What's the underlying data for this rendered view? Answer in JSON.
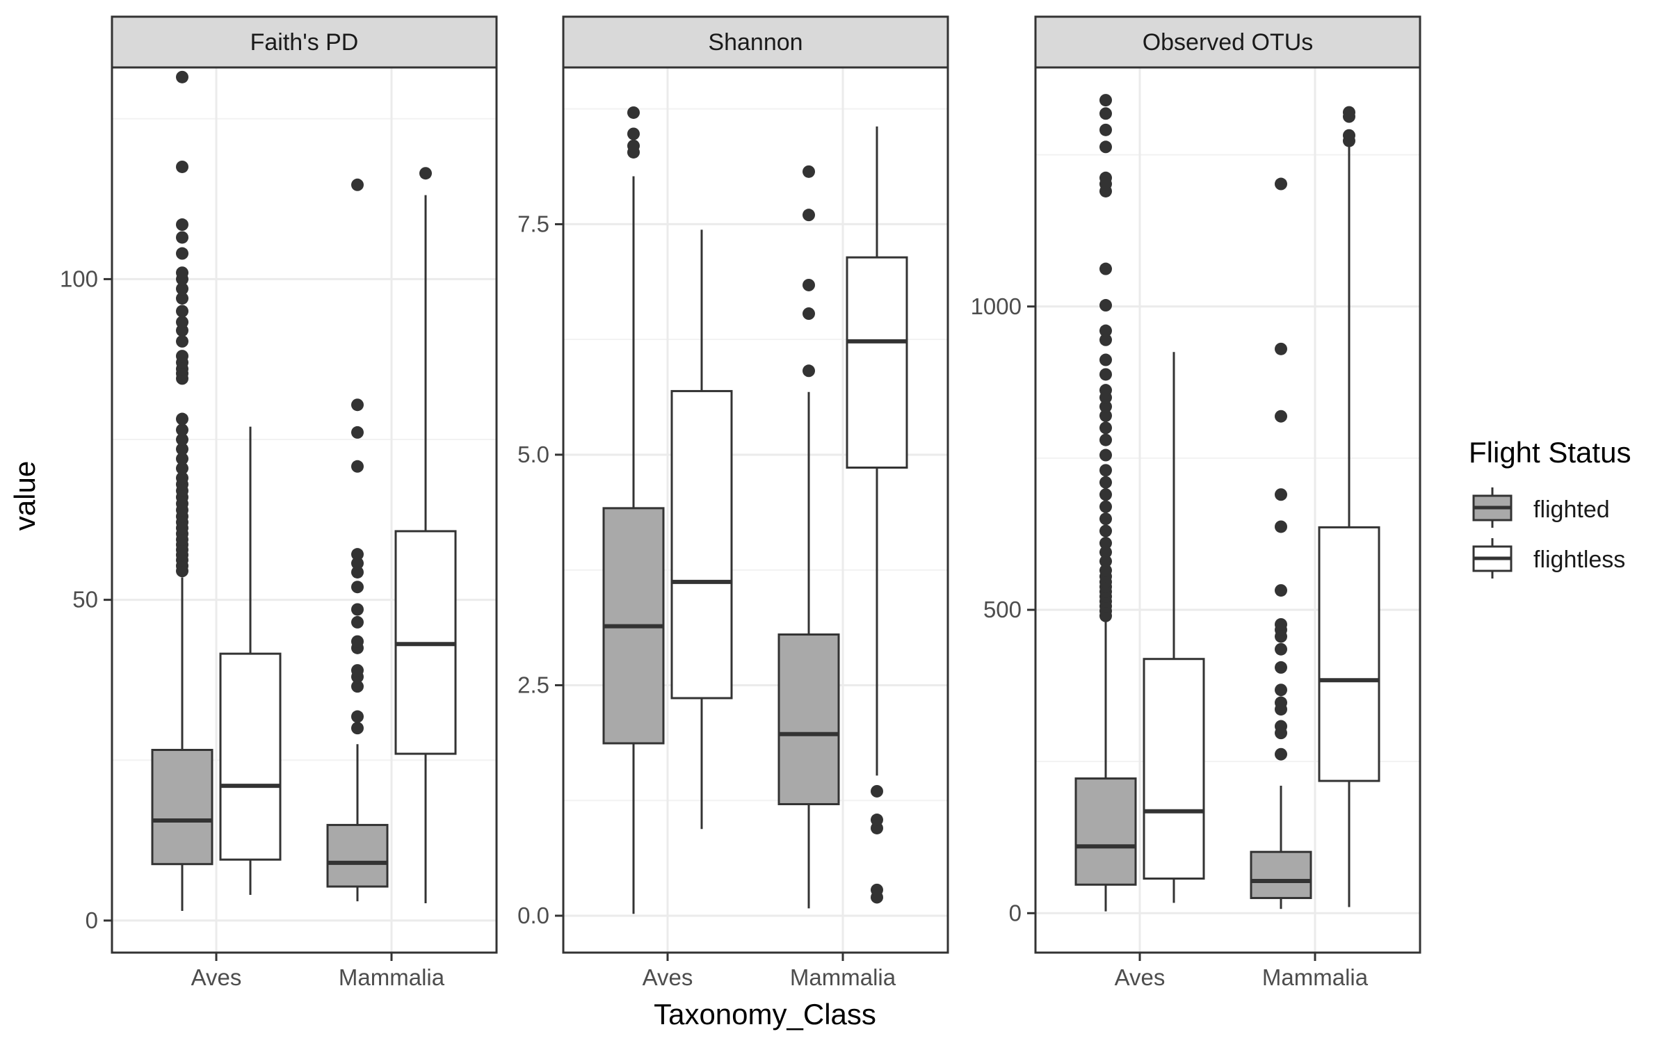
{
  "chart_data": {
    "type": "boxplot",
    "ylabel": "value",
    "xlabel": "Taxonomy_Class",
    "categories": [
      "Aves",
      "Mammalia"
    ],
    "legend": {
      "title": "Flight Status",
      "placement": "right",
      "items": [
        {
          "name": "flighted",
          "color": "#a9a9a9"
        },
        {
          "name": "flightless",
          "color": "#ffffff"
        }
      ]
    },
    "panels": [
      {
        "title": "Faith's PD",
        "ylim": [
          -5,
          133
        ],
        "yticks": [
          0,
          50,
          100
        ],
        "ytick_labels": [
          "0",
          "50",
          "100"
        ],
        "grid": true,
        "boxes": [
          {
            "category": "Aves",
            "group": "flighted",
            "whisker_low": 1.5,
            "q1": 8.8,
            "median": 15.6,
            "q3": 26.6,
            "whisker_high": 53.5,
            "outliers": [
              54.5,
              55.3,
              56.2,
              57.0,
              57.8,
              58.6,
              59.4,
              60.3,
              61.2,
              62.1,
              63.0,
              64.0,
              65.0,
              66.0,
              67.0,
              68.0,
              69.0,
              70.5,
              72.0,
              73.5,
              75.0,
              76.5,
              78.2,
              84.5,
              85.3,
              86.0,
              87.0,
              88.0,
              90.3,
              92.0,
              93.3,
              95.0,
              97.0,
              98.5,
              100.0,
              101.0,
              104.0,
              106.5,
              108.5,
              117.5,
              131.5
            ]
          },
          {
            "category": "Aves",
            "group": "flightless",
            "whisker_low": 4.0,
            "q1": 9.5,
            "median": 21.0,
            "q3": 41.6,
            "whisker_high": 77.0,
            "outliers": []
          },
          {
            "category": "Mammalia",
            "group": "flighted",
            "whisker_low": 3.0,
            "q1": 5.3,
            "median": 9.0,
            "q3": 14.9,
            "whisker_high": 27.5,
            "outliers": [
              30.0,
              31.8,
              36.5,
              38.0,
              39.0,
              42.5,
              43.5,
              46.5,
              48.5,
              52.0,
              54.3,
              55.7,
              57.1,
              70.8,
              76.1,
              80.4,
              114.7
            ]
          },
          {
            "category": "Mammalia",
            "group": "flightless",
            "whisker_low": 2.7,
            "q1": 26.0,
            "median": 43.1,
            "q3": 60.7,
            "whisker_high": 113.1,
            "outliers": [
              116.5
            ]
          }
        ]
      },
      {
        "title": "Shannon",
        "ylim": [
          -0.4,
          9.2
        ],
        "yticks": [
          0.0,
          2.5,
          5.0,
          7.5
        ],
        "ytick_labels": [
          "0.0",
          "2.5",
          "5.0",
          "7.5"
        ],
        "grid": true,
        "boxes": [
          {
            "category": "Aves",
            "group": "flighted",
            "whisker_low": 0.02,
            "q1": 1.87,
            "median": 3.14,
            "q3": 4.42,
            "whisker_high": 8.02,
            "outliers": [
              8.28,
              8.35,
              8.48,
              8.71
            ]
          },
          {
            "category": "Aves",
            "group": "flightless",
            "whisker_low": 0.94,
            "q1": 2.36,
            "median": 3.62,
            "q3": 5.69,
            "whisker_high": 7.44,
            "outliers": []
          },
          {
            "category": "Mammalia",
            "group": "flighted",
            "whisker_low": 0.08,
            "q1": 1.21,
            "median": 1.97,
            "q3": 3.05,
            "whisker_high": 5.68,
            "outliers": [
              5.91,
              6.53,
              6.84,
              7.6,
              8.07
            ]
          },
          {
            "category": "Mammalia",
            "group": "flightless",
            "whisker_low": 1.52,
            "q1": 4.86,
            "median": 6.23,
            "q3": 7.14,
            "whisker_high": 8.56,
            "outliers": [
              0.2,
              0.28,
              0.95,
              1.04,
              1.35
            ]
          }
        ]
      },
      {
        "title": "Observed OTUs",
        "ylim": [
          -65,
          1394
        ],
        "yticks": [
          0,
          500,
          1000
        ],
        "ytick_labels": [
          "0",
          "500",
          "1000"
        ],
        "grid": true,
        "boxes": [
          {
            "category": "Aves",
            "group": "flighted",
            "whisker_low": 3.0,
            "q1": 47.0,
            "median": 110.0,
            "q3": 222.0,
            "whisker_high": 480.0,
            "outliers": [
              490,
              498,
              506,
              514,
              522,
              530,
              538,
              546,
              555,
              565,
              580,
              595,
              610,
              630,
              650,
              670,
              690,
              710,
              730,
              755,
              780,
              800,
              820,
              835,
              850,
              862,
              888,
              912,
              945,
              960,
              1002,
              1062,
              1190,
              1202,
              1212,
              1263,
              1291,
              1318,
              1340
            ]
          },
          {
            "category": "Aves",
            "group": "flightless",
            "whisker_low": 17.0,
            "q1": 57.0,
            "median": 168.0,
            "q3": 419.0,
            "whisker_high": 925.0,
            "outliers": []
          },
          {
            "category": "Mammalia",
            "group": "flighted",
            "whisker_low": 7.0,
            "q1": 25.0,
            "median": 53.0,
            "q3": 101.0,
            "whisker_high": 210.0,
            "outliers": [
              262,
              297,
              308,
              336,
              347,
              368,
              405,
              435,
              456,
              467,
              476,
              532,
              637,
              690,
              819,
              930,
              1202
            ]
          },
          {
            "category": "Mammalia",
            "group": "flightless",
            "whisker_low": 10.0,
            "q1": 218.0,
            "median": 384.0,
            "q3": 636.0,
            "whisker_high": 1265.0,
            "outliers": [
              1273,
              1282,
              1313,
              1320
            ]
          }
        ]
      }
    ]
  }
}
